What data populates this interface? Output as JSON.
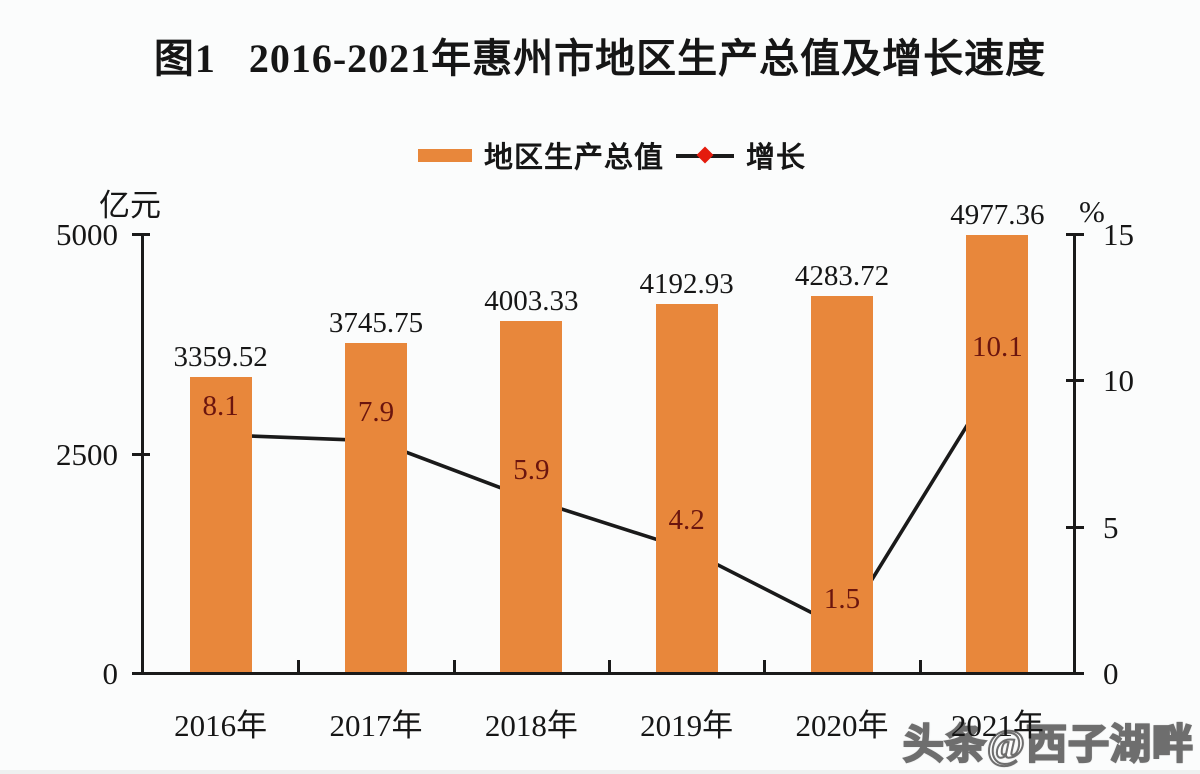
{
  "title": "图1   2016-2021年惠州市地区生产总值及增长速度",
  "legend": {
    "bar_label": "地区生产总值",
    "line_label": "增长"
  },
  "watermark": "头条@西子湖畔",
  "colors": {
    "bar": "#e8873b",
    "line": "#1a1a1a",
    "marker_fill": "#e41b0d",
    "marker_edge": "#8e0e06",
    "line_value_label": "#6b150e",
    "bar_value_label": "#161616",
    "axis": "#1a1a1a"
  },
  "chart_data": {
    "type": "bar+line",
    "title": "图1 2016-2021年惠州市地区生产总值及增长速度",
    "categories": [
      "2016年",
      "2017年",
      "2018年",
      "2019年",
      "2020年",
      "2021年"
    ],
    "series": [
      {
        "name": "地区生产总值",
        "type": "bar",
        "axis": "left",
        "values": [
          3359.52,
          3745.75,
          4003.33,
          4192.93,
          4283.72,
          4977.36
        ]
      },
      {
        "name": "增长",
        "type": "line",
        "axis": "right",
        "values": [
          8.1,
          7.9,
          5.9,
          4.2,
          1.5,
          10.1
        ]
      }
    ],
    "left_axis": {
      "label": "亿元",
      "min": 0,
      "max": 5000,
      "ticks": [
        0,
        2500,
        5000
      ]
    },
    "right_axis": {
      "label": "%",
      "min": 0,
      "max": 15,
      "ticks": [
        0,
        5,
        10,
        15
      ]
    },
    "legend_position": "top-center",
    "grid": false
  }
}
